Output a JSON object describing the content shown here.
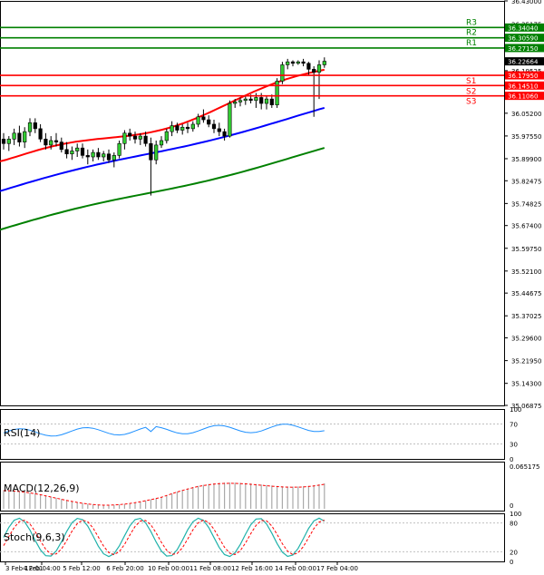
{
  "chart_data": {
    "type": "candlestick",
    "price_axis": {
      "ticks": [
        "36.43000",
        "36.35175",
        "36.27350",
        "36.19525",
        "36.11700",
        "36.05200",
        "35.97550",
        "35.89900",
        "35.82475",
        "35.74825",
        "35.67400",
        "35.59750",
        "35.52100",
        "35.44675",
        "35.37025",
        "35.29600",
        "35.21950",
        "35.14300",
        "35.06875"
      ]
    },
    "time_axis": {
      "labels": [
        "3 Feb 12:01",
        "4 Feb 04:00",
        "5 Feb 12:00",
        "6 Feb 20:00",
        "10 Feb 00:00",
        "11 Feb 08:00",
        "12 Feb 16:00",
        "14 Feb 00:00",
        "17 Feb 04:00"
      ]
    },
    "candles": [
      {
        "o": 35.965,
        "h": 35.985,
        "l": 35.93,
        "c": 35.95
      },
      {
        "o": 35.95,
        "h": 35.975,
        "l": 35.925,
        "c": 35.965
      },
      {
        "o": 35.965,
        "h": 36.0,
        "l": 35.945,
        "c": 35.985
      },
      {
        "o": 35.985,
        "h": 36.01,
        "l": 35.94,
        "c": 35.955
      },
      {
        "o": 35.955,
        "h": 36.005,
        "l": 35.935,
        "c": 35.99
      },
      {
        "o": 35.99,
        "h": 36.035,
        "l": 35.975,
        "c": 36.02
      },
      {
        "o": 36.02,
        "h": 36.035,
        "l": 35.985,
        "c": 36.0
      },
      {
        "o": 36.0,
        "h": 36.015,
        "l": 35.955,
        "c": 35.965
      },
      {
        "o": 35.965,
        "h": 35.985,
        "l": 35.93,
        "c": 35.945
      },
      {
        "o": 35.945,
        "h": 35.975,
        "l": 35.93,
        "c": 35.96
      },
      {
        "o": 35.96,
        "h": 35.985,
        "l": 35.94,
        "c": 35.955
      },
      {
        "o": 35.955,
        "h": 35.97,
        "l": 35.92,
        "c": 35.93
      },
      {
        "o": 35.93,
        "h": 35.955,
        "l": 35.9,
        "c": 35.915
      },
      {
        "o": 35.915,
        "h": 35.94,
        "l": 35.895,
        "c": 35.925
      },
      {
        "o": 35.925,
        "h": 35.95,
        "l": 35.905,
        "c": 35.935
      },
      {
        "o": 35.935,
        "h": 35.95,
        "l": 35.9,
        "c": 35.91
      },
      {
        "o": 35.91,
        "h": 35.93,
        "l": 35.88,
        "c": 35.905
      },
      {
        "o": 35.905,
        "h": 35.93,
        "l": 35.89,
        "c": 35.92
      },
      {
        "o": 35.92,
        "h": 35.935,
        "l": 35.895,
        "c": 35.905
      },
      {
        "o": 35.905,
        "h": 35.925,
        "l": 35.89,
        "c": 35.915
      },
      {
        "o": 35.915,
        "h": 35.93,
        "l": 35.885,
        "c": 35.895
      },
      {
        "o": 35.895,
        "h": 35.92,
        "l": 35.87,
        "c": 35.91
      },
      {
        "o": 35.91,
        "h": 35.96,
        "l": 35.9,
        "c": 35.95
      },
      {
        "o": 35.95,
        "h": 35.995,
        "l": 35.93,
        "c": 35.985
      },
      {
        "o": 35.985,
        "h": 36.0,
        "l": 35.96,
        "c": 35.975
      },
      {
        "o": 35.975,
        "h": 35.99,
        "l": 35.95,
        "c": 35.965
      },
      {
        "o": 35.965,
        "h": 35.985,
        "l": 35.945,
        "c": 35.975
      },
      {
        "o": 35.975,
        "h": 35.99,
        "l": 35.94,
        "c": 35.95
      },
      {
        "o": 35.95,
        "h": 35.97,
        "l": 35.775,
        "c": 35.895
      },
      {
        "o": 35.895,
        "h": 35.96,
        "l": 35.88,
        "c": 35.945
      },
      {
        "o": 35.945,
        "h": 35.975,
        "l": 35.935,
        "c": 35.96
      },
      {
        "o": 35.96,
        "h": 36.0,
        "l": 35.95,
        "c": 35.99
      },
      {
        "o": 35.99,
        "h": 36.025,
        "l": 35.975,
        "c": 36.01
      },
      {
        "o": 36.01,
        "h": 36.02,
        "l": 35.985,
        "c": 35.995
      },
      {
        "o": 35.995,
        "h": 36.015,
        "l": 35.98,
        "c": 36.005
      },
      {
        "o": 36.005,
        "h": 36.02,
        "l": 35.985,
        "c": 36.0
      },
      {
        "o": 36.0,
        "h": 36.025,
        "l": 35.99,
        "c": 36.015
      },
      {
        "o": 36.015,
        "h": 36.05,
        "l": 36.005,
        "c": 36.04
      },
      {
        "o": 36.04,
        "h": 36.065,
        "l": 36.02,
        "c": 36.03
      },
      {
        "o": 36.03,
        "h": 36.045,
        "l": 36.005,
        "c": 36.015
      },
      {
        "o": 36.015,
        "h": 36.03,
        "l": 35.985,
        "c": 36.0
      },
      {
        "o": 36.0,
        "h": 36.02,
        "l": 35.975,
        "c": 35.99
      },
      {
        "o": 35.99,
        "h": 36.0,
        "l": 35.96,
        "c": 35.975
      },
      {
        "o": 35.975,
        "h": 36.095,
        "l": 35.97,
        "c": 36.085
      },
      {
        "o": 36.085,
        "h": 36.1,
        "l": 36.07,
        "c": 36.09
      },
      {
        "o": 36.09,
        "h": 36.105,
        "l": 36.075,
        "c": 36.095
      },
      {
        "o": 36.095,
        "h": 36.11,
        "l": 36.08,
        "c": 36.1
      },
      {
        "o": 36.1,
        "h": 36.115,
        "l": 36.085,
        "c": 36.095
      },
      {
        "o": 36.095,
        "h": 36.12,
        "l": 36.07,
        "c": 36.105
      },
      {
        "o": 36.105,
        "h": 36.12,
        "l": 36.065,
        "c": 36.085
      },
      {
        "o": 36.085,
        "h": 36.11,
        "l": 36.065,
        "c": 36.1
      },
      {
        "o": 36.1,
        "h": 36.115,
        "l": 36.07,
        "c": 36.08
      },
      {
        "o": 36.08,
        "h": 36.17,
        "l": 36.07,
        "c": 36.16
      },
      {
        "o": 36.16,
        "h": 36.225,
        "l": 36.15,
        "c": 36.215
      },
      {
        "o": 36.215,
        "h": 36.235,
        "l": 36.2,
        "c": 36.225
      },
      {
        "o": 36.225,
        "h": 36.23,
        "l": 36.21,
        "c": 36.22
      },
      {
        "o": 36.22,
        "h": 36.23,
        "l": 36.215,
        "c": 36.225
      },
      {
        "o": 36.225,
        "h": 36.235,
        "l": 36.21,
        "c": 36.22
      },
      {
        "o": 36.22,
        "h": 36.225,
        "l": 36.18,
        "c": 36.2
      },
      {
        "o": 36.2,
        "h": 36.21,
        "l": 36.04,
        "c": 36.19
      },
      {
        "o": 36.19,
        "h": 36.23,
        "l": 36.1,
        "c": 36.215
      },
      {
        "o": 36.215,
        "h": 36.24,
        "l": 36.205,
        "c": 36.227
      }
    ],
    "moving_averages": [
      {
        "color": "#ff0000",
        "start": 35.89,
        "end": 36.19
      },
      {
        "color": "#0000ff",
        "start": 35.79,
        "end": 36.065
      },
      {
        "color": "#008000",
        "start": 35.66,
        "end": 35.93
      }
    ],
    "levels": [
      {
        "label": "R3",
        "value": "36.34040",
        "price": 36.3404,
        "color": "#008000"
      },
      {
        "label": "R2",
        "value": "36.30590",
        "price": 36.3059,
        "color": "#008000"
      },
      {
        "label": "R1",
        "value": "36.27150",
        "price": 36.2715,
        "color": "#008000"
      },
      {
        "label": "S1",
        "value": "36.17950",
        "price": 36.1795,
        "color": "#ff0000"
      },
      {
        "label": "S2",
        "value": "36.14510",
        "price": 36.1451,
        "color": "#ff0000"
      },
      {
        "label": "S3",
        "value": "36.11060",
        "price": 36.1106,
        "color": "#ff0000"
      }
    ],
    "current_price": {
      "value": "36.22664",
      "price": 36.22664
    },
    "indicators": {
      "rsi": {
        "label": "RSI(14)",
        "ticks": [
          "100",
          "70",
          "30",
          "0"
        ],
        "color": "#1e90ff"
      },
      "macd": {
        "label": "MACD(12,26,9)",
        "ticks": [
          "0.065175",
          "0"
        ],
        "signal_color": "#ff0000"
      },
      "stoch": {
        "label": "Stoch(9,6,3)",
        "ticks": [
          "100",
          "80",
          "20",
          "0"
        ],
        "main_color": "#20b2aa",
        "signal_color": "#ff0000"
      }
    }
  }
}
